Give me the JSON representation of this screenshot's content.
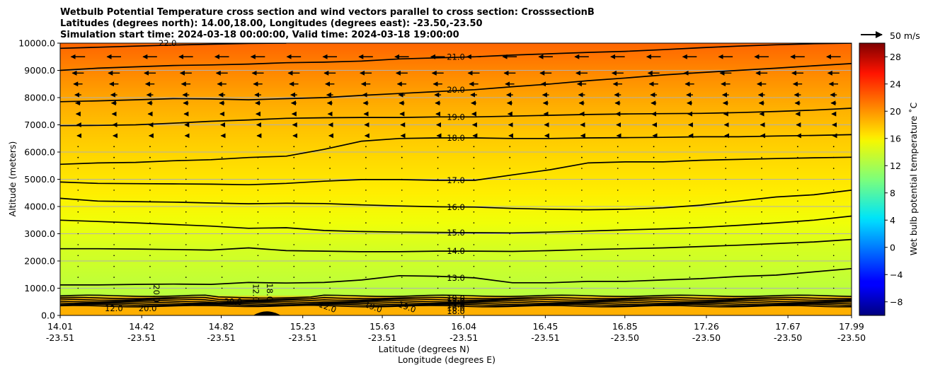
{
  "chart_data": {
    "type": "heatmap",
    "title_lines": [
      "Wetbulb Potential Temperature cross section and wind vectors parallel to cross section: CrosssectionB",
      "Latitudes (degrees north): 14.00,18.00, Longitudes (degrees east): -23.50,-23.50",
      "Simulation start time: 2024-03-18 00:00:00, Valid time: 2024-03-18 19:00:00"
    ],
    "xlabel": "Latitude (degrees N)",
    "xlabel2": "Longitude (degrees E)",
    "ylabel": "Altitude (meters)",
    "xlim": [
      14.01,
      17.99
    ],
    "ylim": [
      0,
      10000
    ],
    "x_ticks": [
      {
        "lat": "14.01",
        "lon": "-23.51",
        "x": 14.01
      },
      {
        "lat": "14.42",
        "lon": "-23.51",
        "x": 14.42
      },
      {
        "lat": "14.82",
        "lon": "-23.51",
        "x": 14.82
      },
      {
        "lat": "15.23",
        "lon": "-23.51",
        "x": 15.23
      },
      {
        "lat": "15.63",
        "lon": "-23.51",
        "x": 15.63
      },
      {
        "lat": "16.04",
        "lon": "-23.51",
        "x": 16.04
      },
      {
        "lat": "16.45",
        "lon": "-23.51",
        "x": 16.45
      },
      {
        "lat": "16.85",
        "lon": "-23.50",
        "x": 16.85
      },
      {
        "lat": "17.26",
        "lon": "-23.50",
        "x": 17.26
      },
      {
        "lat": "17.67",
        "lon": "-23.50",
        "x": 17.67
      },
      {
        "lat": "17.99",
        "lon": "-23.50",
        "x": 17.99
      }
    ],
    "y_ticks": [
      "0.0",
      "1000.0",
      "2000.0",
      "3000.0",
      "4000.0",
      "5000.0",
      "6000.0",
      "7000.0",
      "8000.0",
      "9000.0",
      "10000.0"
    ],
    "grid": "horizontal",
    "colorbar": {
      "label": "Wet bulb potential temperature ˚C",
      "range": [
        -10,
        30
      ],
      "ticks": [
        "−8",
        "−4",
        "0",
        "4",
        "8",
        "12",
        "16",
        "20",
        "24",
        "28"
      ],
      "colormap": "jet"
    },
    "wind_key": {
      "label": "50 m/s"
    },
    "contours": [
      {
        "level": 13.0,
        "label": "13.0",
        "alt": [
          1120,
          1120,
          1140,
          1150,
          1140,
          1210,
          1190,
          1210,
          1300,
          1460,
          1440,
          1380,
          1200,
          1200,
          1250,
          1250,
          1300,
          1350,
          1430,
          1480,
          1600,
          1720
        ]
      },
      {
        "level": 14.0,
        "label": "14.0",
        "alt": [
          2450,
          2450,
          2440,
          2420,
          2400,
          2480,
          2380,
          2360,
          2340,
          2340,
          2360,
          2360,
          2350,
          2380,
          2420,
          2450,
          2480,
          2530,
          2580,
          2640,
          2700,
          2790
        ]
      },
      {
        "level": 15.0,
        "label": "15.0",
        "alt": [
          3500,
          3450,
          3400,
          3340,
          3280,
          3200,
          3220,
          3120,
          3080,
          3060,
          3050,
          3040,
          3030,
          3060,
          3100,
          3140,
          3180,
          3230,
          3310,
          3400,
          3500,
          3650
        ]
      },
      {
        "level": 16.0,
        "label": "16.0",
        "alt": [
          4300,
          4200,
          4180,
          4160,
          4130,
          4100,
          4120,
          4110,
          4060,
          4020,
          3990,
          3980,
          3930,
          3900,
          3880,
          3900,
          3950,
          4050,
          4200,
          4350,
          4430,
          4600
        ]
      },
      {
        "level": 17.0,
        "label": "17.0",
        "alt": [
          4900,
          4850,
          4840,
          4830,
          4820,
          4800,
          4850,
          4930,
          4990,
          4990,
          4960,
          4960,
          5160,
          5350,
          5600,
          5640,
          5640,
          5700,
          5730,
          5760,
          5790,
          5810
        ]
      },
      {
        "level": 18.0,
        "label": "18.0",
        "alt": [
          5550,
          5600,
          5620,
          5680,
          5720,
          5800,
          5850,
          6100,
          6400,
          6500,
          6520,
          6520,
          6500,
          6500,
          6520,
          6530,
          6540,
          6560,
          6560,
          6590,
          6610,
          6640
        ]
      },
      {
        "level": 19.0,
        "label": "19.0",
        "alt": [
          6970,
          6980,
          7000,
          7060,
          7130,
          7180,
          7240,
          7260,
          7270,
          7270,
          7290,
          7290,
          7320,
          7350,
          7380,
          7400,
          7410,
          7420,
          7450,
          7490,
          7540,
          7610
        ]
      },
      {
        "level": 20.0,
        "label": "20.0",
        "alt": [
          7850,
          7880,
          7920,
          7960,
          7950,
          7920,
          7960,
          8000,
          8080,
          8150,
          8220,
          8290,
          8400,
          8500,
          8620,
          8720,
          8830,
          8920,
          9000,
          9080,
          9170,
          9250
        ]
      },
      {
        "level": 21.0,
        "label": "21.0",
        "alt": [
          9000,
          9080,
          9130,
          9180,
          9200,
          9230,
          9280,
          9300,
          9340,
          9420,
          9460,
          9500,
          9560,
          9610,
          9660,
          9700,
          9760,
          9830,
          9890,
          9940,
          9980,
          10000
        ]
      },
      {
        "level": 22.0,
        "label": "22.0",
        "alt": [
          9810,
          9850,
          9890,
          9930,
          9960,
          9990,
          10000,
          null,
          null,
          null,
          null,
          null,
          null,
          null,
          null,
          null,
          null,
          null,
          null,
          null,
          null,
          null
        ]
      }
    ],
    "inline_labels": [
      "12.0",
      "20.0",
      "20.0",
      "12.0",
      "18.0",
      "20.0",
      "12.0",
      "19.0",
      "19.0",
      "19.0",
      "12.0",
      "13.0",
      "16.0",
      "18.0"
    ],
    "wind_vectors": {
      "description": "wind components parallel to cross section; westward (negative) in upper levels, eastward near surface",
      "levels_m": [
        9500,
        8900,
        8500,
        8100,
        7800,
        7400,
        7000,
        6600,
        6200,
        5800
      ],
      "u_ms": [
        -22,
        -18,
        -14,
        -10,
        -8,
        -6,
        -4,
        -3,
        -2,
        -1
      ]
    }
  }
}
